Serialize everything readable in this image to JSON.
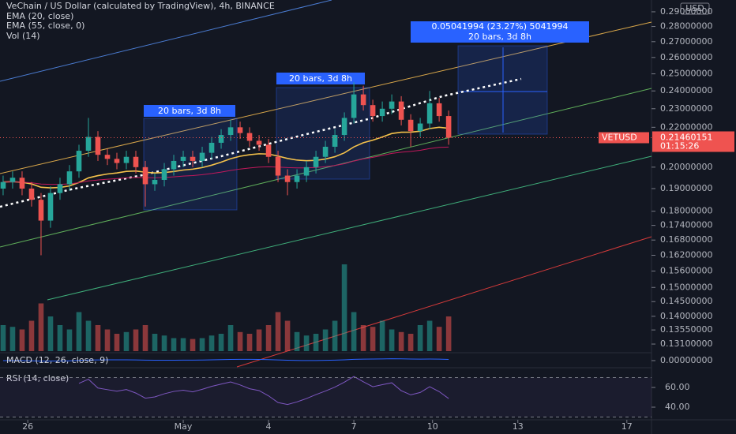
{
  "chart_data": {
    "type": "candlestick",
    "title": "VeChain / US Dollar (calculated by TradingView), 4h, BINANCE",
    "indicators": [
      "EMA (20, close)",
      "EMA (55, close, 0)",
      "Vol (14)"
    ],
    "macd_label": "MACD (12, 26, close, 9)",
    "rsi_label": "RSI (14, close)",
    "currency": "USD",
    "symbol": "VETUSD",
    "last_price": 0.21460151,
    "countdown": "01:15:26",
    "up_color": "#26a69a",
    "down_color": "#ef5350",
    "log": true,
    "ylim": [
      0.1288,
      0.2983
    ],
    "yticks": [
      {
        "value": 0.29,
        "label": "0.29000000"
      },
      {
        "value": 0.28,
        "label": "0.28000000"
      },
      {
        "value": 0.27,
        "label": "0.27000000"
      },
      {
        "value": 0.26,
        "label": "0.26000000"
      },
      {
        "value": 0.25,
        "label": "0.25000000"
      },
      {
        "value": 0.24,
        "label": "0.24000000"
      },
      {
        "value": 0.23,
        "label": "0.23000000"
      },
      {
        "value": 0.22,
        "label": "0.22000000"
      },
      {
        "value": 0.2,
        "label": "0.20000000"
      },
      {
        "value": 0.19,
        "label": "0.19000000"
      },
      {
        "value": 0.18,
        "label": "0.18000000"
      },
      {
        "value": 0.174,
        "label": "0.17400000"
      },
      {
        "value": 0.168,
        "label": "0.16800000"
      },
      {
        "value": 0.162,
        "label": "0.16200000"
      },
      {
        "value": 0.156,
        "label": "0.15600000"
      },
      {
        "value": 0.15,
        "label": "0.15000000"
      },
      {
        "value": 0.145,
        "label": "0.14500000"
      },
      {
        "value": 0.14,
        "label": "0.14000000"
      },
      {
        "value": 0.1355,
        "label": "0.13550000"
      },
      {
        "value": 0.131,
        "label": "0.13100000"
      }
    ],
    "macd_tick": {
      "value": 0,
      "label": "0.00000000"
    },
    "rsi_ticks": [
      {
        "value": 60,
        "label": "60.00"
      },
      {
        "value": 40,
        "label": "40.00"
      }
    ],
    "xlim": [
      -0.33,
      68.4
    ],
    "xticks": [
      {
        "value": 2.6,
        "label": "26"
      },
      {
        "value": 19,
        "label": "May"
      },
      {
        "value": 28,
        "label": "4"
      },
      {
        "value": 37,
        "label": "7"
      },
      {
        "value": 45.3,
        "label": "10"
      },
      {
        "value": 54.3,
        "label": "13"
      },
      {
        "value": 65.8,
        "label": "17"
      }
    ],
    "open": [
      0.19,
      0.193,
      0.195,
      0.19,
      0.185,
      0.176,
      0.188,
      0.192,
      0.198,
      0.208,
      0.215,
      0.206,
      0.204,
      0.202,
      0.205,
      0.2,
      0.192,
      0.194,
      0.199,
      0.203,
      0.205,
      0.203,
      0.207,
      0.212,
      0.216,
      0.22,
      0.217,
      0.213,
      0.211,
      0.205,
      0.196,
      0.193,
      0.196,
      0.2,
      0.205,
      0.21,
      0.216,
      0.225,
      0.238,
      0.232,
      0.226,
      0.23,
      0.234,
      0.224,
      0.218,
      0.222,
      0.233,
      0.226
    ],
    "high": [
      0.196,
      0.198,
      0.198,
      0.193,
      0.188,
      0.191,
      0.195,
      0.201,
      0.211,
      0.225,
      0.218,
      0.209,
      0.207,
      0.208,
      0.208,
      0.203,
      0.197,
      0.202,
      0.206,
      0.208,
      0.208,
      0.21,
      0.215,
      0.219,
      0.224,
      0.223,
      0.22,
      0.216,
      0.214,
      0.208,
      0.199,
      0.199,
      0.203,
      0.208,
      0.213,
      0.219,
      0.228,
      0.245,
      0.243,
      0.235,
      0.234,
      0.238,
      0.237,
      0.227,
      0.225,
      0.24,
      0.236,
      0.229
    ],
    "low": [
      0.187,
      0.19,
      0.187,
      0.182,
      0.162,
      0.173,
      0.185,
      0.189,
      0.195,
      0.205,
      0.203,
      0.201,
      0.199,
      0.199,
      0.197,
      0.182,
      0.189,
      0.191,
      0.196,
      0.2,
      0.2,
      0.2,
      0.204,
      0.209,
      0.213,
      0.214,
      0.21,
      0.208,
      0.202,
      0.193,
      0.187,
      0.19,
      0.193,
      0.197,
      0.202,
      0.207,
      0.213,
      0.222,
      0.229,
      0.223,
      0.223,
      0.227,
      0.221,
      0.21,
      0.215,
      0.219,
      0.223,
      0.211
    ],
    "close": [
      0.193,
      0.195,
      0.19,
      0.185,
      0.176,
      0.188,
      0.192,
      0.198,
      0.208,
      0.215,
      0.206,
      0.204,
      0.202,
      0.205,
      0.2,
      0.192,
      0.194,
      0.199,
      0.203,
      0.205,
      0.203,
      0.207,
      0.212,
      0.216,
      0.22,
      0.217,
      0.213,
      0.211,
      0.205,
      0.196,
      0.193,
      0.196,
      0.2,
      0.205,
      0.21,
      0.216,
      0.225,
      0.238,
      0.232,
      0.226,
      0.23,
      0.234,
      0.224,
      0.218,
      0.222,
      0.233,
      0.226,
      0.2146
    ],
    "volume": [
      30,
      28,
      25,
      35,
      55,
      40,
      30,
      25,
      45,
      35,
      30,
      25,
      20,
      22,
      25,
      30,
      20,
      18,
      15,
      15,
      14,
      15,
      18,
      20,
      30,
      22,
      20,
      25,
      30,
      45,
      35,
      22,
      18,
      20,
      25,
      35,
      100,
      45,
      30,
      28,
      35,
      25,
      22,
      20,
      30,
      35,
      28,
      40
    ],
    "annotations": [
      "20 bars, 3d 8h",
      "20 bars, 3d 8h",
      "20 bars, 3d 8h",
      "0.05041994 (23.27%) 5041994"
    ]
  }
}
